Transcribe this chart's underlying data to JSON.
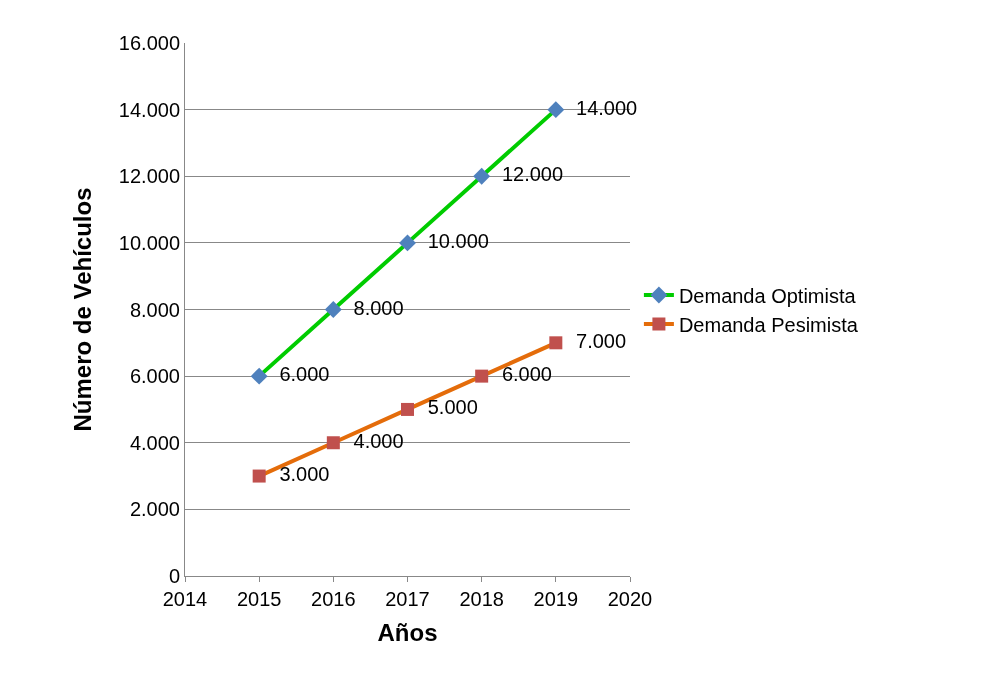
{
  "chart_data": {
    "type": "line",
    "xlabel": "Años",
    "ylabel": "Número de Vehículos",
    "x": [
      2015,
      2016,
      2017,
      2018,
      2019
    ],
    "series": [
      {
        "name": "Demanda Optimista",
        "color": "#00cc00",
        "marker": "diamond",
        "colors": [
          "#4f81bd",
          "#4f81bd",
          "#4f81bd",
          "#4f81bd",
          "#4f81bd"
        ],
        "values": [
          6000,
          8000,
          10000,
          12000,
          14000
        ],
        "value_labels": [
          "6.000",
          "8.000",
          "10.000",
          "12.000",
          "14.000"
        ]
      },
      {
        "name": "Demanda Pesimista",
        "color": "#e46c0a",
        "marker": "square",
        "colors": [
          "#c0504d",
          "#c0504d",
          "#c0504d",
          "#c0504d",
          "#c0504d"
        ],
        "values": [
          3000,
          4000,
          5000,
          6000,
          7000
        ],
        "value_labels": [
          "3.000",
          "4.000",
          "5.000",
          "6.000",
          "7.000"
        ]
      }
    ],
    "xlim": [
      2014,
      2020
    ],
    "xticks": [
      2014,
      2015,
      2016,
      2017,
      2018,
      2019,
      2020
    ],
    "ylim": [
      0,
      16000
    ],
    "yticks": [
      0,
      {
        "value": 2000,
        "label": "2.000"
      },
      {
        "value": 4000,
        "label": "4.000"
      },
      {
        "value": 6000,
        "label": "6.000"
      },
      {
        "value": 8000,
        "label": "8.000"
      },
      {
        "value": 10000,
        "label": "10.000"
      },
      {
        "value": 12000,
        "label": "12.000"
      },
      {
        "value": 14000,
        "label": "14.000"
      },
      {
        "value": 16000,
        "label": "16.000"
      }
    ],
    "grid": "y",
    "legend": "right",
    "line_style": "solid"
  }
}
